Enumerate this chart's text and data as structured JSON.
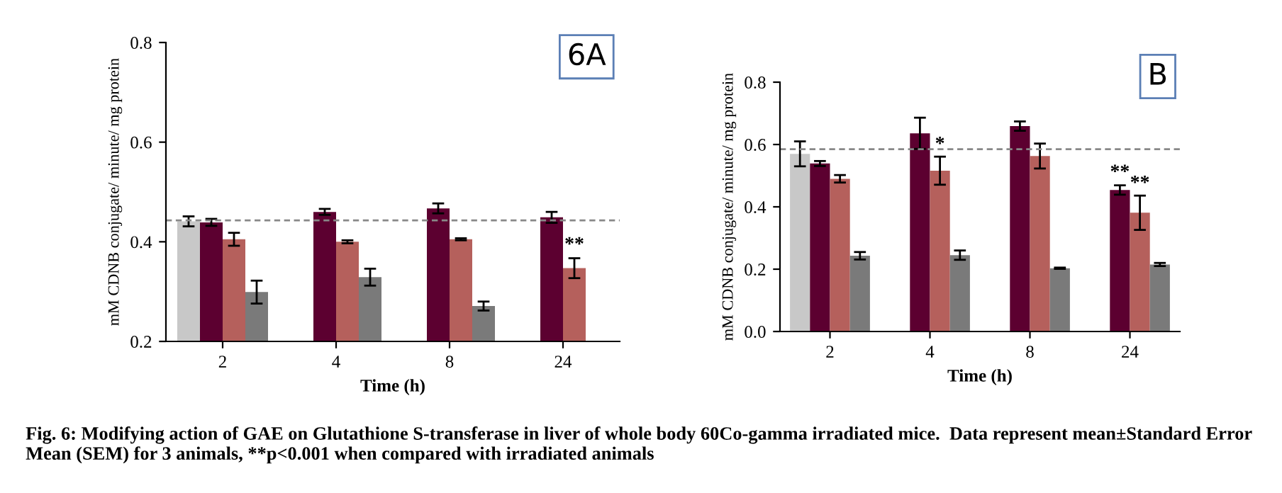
{
  "chart_data": [
    {
      "type": "bar",
      "categories": [
        "2",
        "4",
        "8",
        "24"
      ],
      "xlabel": "Time (h)",
      "ylabel": "mM CDNB conjugate/ minute/ mg protein",
      "ylim": [
        0.2,
        0.8
      ],
      "yticks": [
        0.2,
        0.4,
        0.6,
        0.8
      ],
      "grid": false,
      "legend": false,
      "series": [
        {
          "color": "#c8c8c8",
          "values": [
            0.441,
            null,
            null,
            null
          ],
          "errors": [
            0.01,
            null,
            null,
            null
          ]
        },
        {
          "color": "#5c0030",
          "values": [
            0.439,
            0.46,
            0.467,
            0.449
          ],
          "errors": [
            0.007,
            0.006,
            0.01,
            0.011
          ]
        },
        {
          "color": "#b5605c",
          "values": [
            0.405,
            0.4,
            0.405,
            0.347
          ],
          "errors": [
            0.013,
            0.003,
            0.002,
            0.02
          ]
        },
        {
          "color": "#7a7a7a",
          "values": [
            0.299,
            0.329,
            0.271,
            null
          ],
          "errors": [
            0.023,
            0.017,
            0.009,
            null
          ]
        }
      ],
      "ref_lines": [
        {
          "axis": "y",
          "value": 0.443,
          "color": "#888888",
          "line_style": "dashed"
        }
      ],
      "annotations": [
        "6A",
        {
          "text": "**",
          "x": "24",
          "y": 0.375
        },
        "Fig. 6: Modifying action of GAE on Glutathione S-transferase in liver of whole body 60Co-gamma irradiated mice.  Data represent mean±Standard Error Mean (SEM) for 3 animals, **p<0.001 when compared with irradiated animals"
      ]
    },
    {
      "type": "bar",
      "categories": [
        "2",
        "4",
        "8",
        "24"
      ],
      "xlabel": "Time (h)",
      "ylabel": "mM CDNB conjugate/ minute/ mg protein",
      "ylim": [
        0.0,
        0.8
      ],
      "yticks": [
        {
          "value": 0,
          "label": "0.0"
        },
        0.2,
        0.4,
        0.6,
        0.8
      ],
      "grid": false,
      "legend": false,
      "series": [
        {
          "color": "#c8c8c8",
          "values": [
            0.57,
            null,
            null,
            null
          ],
          "errors": [
            0.04,
            null,
            null,
            null
          ]
        },
        {
          "color": "#5c0030",
          "values": [
            0.539,
            0.636,
            0.659,
            0.454
          ],
          "errors": [
            0.008,
            0.05,
            0.015,
            0.015
          ]
        },
        {
          "color": "#b5605c",
          "values": [
            0.49,
            0.516,
            0.563,
            0.381
          ],
          "errors": [
            0.012,
            0.045,
            0.04,
            0.055
          ]
        },
        {
          "color": "#7a7a7a",
          "values": [
            0.243,
            0.245,
            0.203,
            0.215
          ],
          "errors": [
            0.012,
            0.015,
            0.002,
            0.005
          ]
        }
      ],
      "ref_lines": [
        {
          "axis": "y",
          "value": 0.585,
          "color": "#888888",
          "line_style": "dashed"
        }
      ],
      "annotations": [
        "B",
        {
          "text": "*",
          "x": "4",
          "y": 0.57
        },
        {
          "text": "**",
          "x": "24",
          "y": 0.48
        },
        {
          "text": "**",
          "x": "24",
          "y": 0.445
        }
      ]
    }
  ]
}
